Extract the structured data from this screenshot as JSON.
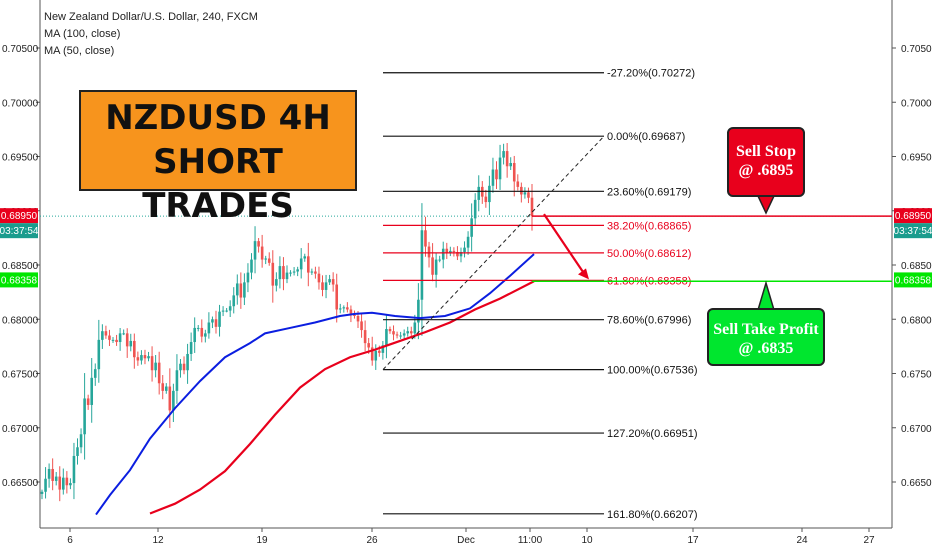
{
  "header": {
    "title": "New Zealand Dollar/U.S. Dollar, 240, FXCM",
    "ma1": "MA (100, close)",
    "ma2": "MA (50, close)"
  },
  "banner": {
    "line1": "NZDUSD 4H",
    "line2": "SHORT TRADES"
  },
  "callouts": {
    "sell_stop": {
      "line1": "Sell Stop",
      "line2": "@ .6895"
    },
    "take_profit": {
      "line1": "Sell Take Profit",
      "line2": "@ .6835"
    }
  },
  "price_badges": {
    "current_price": "0.68950",
    "countdown": "03:37:54",
    "green_price": "0.68358"
  },
  "colors": {
    "up": "#26a69a",
    "down": "#ef5350",
    "ma50": "#0b1ee0",
    "ma100": "#e8001c",
    "stop_line": "#e8001c",
    "tp_line": "#00e600",
    "accent": "#f7941d"
  },
  "chart_data": {
    "type": "candlestick",
    "ylim": [
      0.6625,
      0.7075
    ],
    "y_ticks": [
      "0.70500",
      "0.70000",
      "0.69500",
      "0.69000",
      "0.68500",
      "0.68000",
      "0.67500",
      "0.67000",
      "0.66500"
    ],
    "x_ticks": [
      "6",
      "12",
      "19",
      "26",
      "Dec",
      "11:00",
      "10",
      "17",
      "24",
      "27"
    ],
    "ohlc_open": [
      0.6639,
      0.6641,
      0.6653,
      0.6662,
      0.6651,
      0.6655,
      0.6643,
      0.6654,
      0.6647,
      0.6649,
      0.6674,
      0.6682,
      0.6694,
      0.6727,
      0.6721,
      0.6746,
      0.6754,
      0.6781,
      0.6789,
      0.6785,
      0.6781,
      0.6781,
      0.6779,
      0.6787,
      0.6787,
      0.6775,
      0.678,
      0.6765,
      0.6762,
      0.6767,
      0.6764,
      0.6766,
      0.6753,
      0.676,
      0.6741,
      0.6734,
      0.6738,
      0.6716,
      0.6734,
      0.6753,
      0.6759,
      0.6753,
      0.6768,
      0.6779,
      0.6792,
      0.6792,
      0.6784,
      0.6787,
      0.6797,
      0.68,
      0.6793,
      0.6807,
      0.6808,
      0.6808,
      0.6812,
      0.6822,
      0.6833,
      0.682,
      0.6834,
      0.6843,
      0.6855,
      0.6872,
      0.6867,
      0.6855,
      0.6856,
      0.6852,
      0.6831,
      0.6837,
      0.6849,
      0.6837,
      0.6843,
      0.6843,
      0.6844,
      0.6846,
      0.6856,
      0.6858,
      0.6843,
      0.6844,
      0.6842,
      0.6834,
      0.6827,
      0.6834,
      0.6837,
      0.6832,
      0.6809,
      0.681,
      0.6811,
      0.6809,
      0.6804,
      0.6803,
      0.6798,
      0.679,
      0.6778,
      0.6774,
      0.6762,
      0.6771,
      0.6769,
      0.6776,
      0.6791,
      0.6789,
      0.6786,
      0.6785,
      0.6785,
      0.6787,
      0.6789,
      0.6787,
      0.6797,
      0.6818,
      0.6882,
      0.6867,
      0.6857,
      0.6841,
      0.6855,
      0.6855,
      0.6865,
      0.6861,
      0.6863,
      0.6862,
      0.6858,
      0.6862,
      0.6866,
      0.6876,
      0.6893,
      0.691,
      0.6922,
      0.6913,
      0.6908,
      0.6923,
      0.6938,
      0.6929,
      0.6949,
      0.6955,
      0.6941,
      0.6944,
      0.6927,
      0.6922,
      0.6915,
      0.6917,
      0.6912
    ],
    "ohlc_close": [
      0.6641,
      0.6653,
      0.6662,
      0.6651,
      0.6655,
      0.6643,
      0.6654,
      0.6647,
      0.6649,
      0.6674,
      0.6682,
      0.6694,
      0.6727,
      0.6721,
      0.6746,
      0.6754,
      0.6781,
      0.6789,
      0.6785,
      0.6781,
      0.6781,
      0.6779,
      0.6787,
      0.6787,
      0.6775,
      0.678,
      0.6765,
      0.6762,
      0.6767,
      0.6764,
      0.6766,
      0.6753,
      0.676,
      0.6741,
      0.6734,
      0.6738,
      0.6716,
      0.6734,
      0.6753,
      0.6759,
      0.6753,
      0.6768,
      0.6779,
      0.6792,
      0.6792,
      0.6784,
      0.6787,
      0.6797,
      0.68,
      0.6793,
      0.6807,
      0.6808,
      0.6808,
      0.6812,
      0.6822,
      0.6833,
      0.682,
      0.6834,
      0.6843,
      0.6855,
      0.6872,
      0.6867,
      0.6855,
      0.6856,
      0.6852,
      0.6831,
      0.6837,
      0.6849,
      0.6837,
      0.6843,
      0.6843,
      0.6844,
      0.6846,
      0.6856,
      0.6858,
      0.6843,
      0.6844,
      0.6842,
      0.6834,
      0.6827,
      0.6834,
      0.6837,
      0.6832,
      0.6809,
      0.681,
      0.6811,
      0.6809,
      0.6804,
      0.6803,
      0.6798,
      0.679,
      0.6778,
      0.6774,
      0.6762,
      0.6771,
      0.6769,
      0.6776,
      0.6791,
      0.6789,
      0.6786,
      0.6785,
      0.6785,
      0.6787,
      0.6789,
      0.6787,
      0.6797,
      0.6818,
      0.6882,
      0.6867,
      0.6857,
      0.6841,
      0.6855,
      0.6855,
      0.6865,
      0.6861,
      0.6863,
      0.6862,
      0.6858,
      0.6862,
      0.6866,
      0.6876,
      0.6893,
      0.691,
      0.6922,
      0.6913,
      0.6908,
      0.6923,
      0.6938,
      0.6929,
      0.6949,
      0.6955,
      0.6941,
      0.6944,
      0.6927,
      0.6922,
      0.6915,
      0.6917,
      0.6912,
      0.6895
    ],
    "ma50": [
      [
        96,
        0.662
      ],
      [
        110,
        0.6638
      ],
      [
        130,
        0.6661
      ],
      [
        150,
        0.669
      ],
      [
        175,
        0.6718
      ],
      [
        200,
        0.6743
      ],
      [
        225,
        0.6765
      ],
      [
        250,
        0.6778
      ],
      [
        265,
        0.6787
      ],
      [
        290,
        0.6792
      ],
      [
        315,
        0.6797
      ],
      [
        340,
        0.6803
      ],
      [
        355,
        0.6805
      ],
      [
        372,
        0.6806
      ],
      [
        395,
        0.6803
      ],
      [
        420,
        0.6801
      ],
      [
        445,
        0.6803
      ],
      [
        470,
        0.681
      ],
      [
        490,
        0.6824
      ],
      [
        510,
        0.684
      ],
      [
        534,
        0.686
      ]
    ],
    "ma100": [
      [
        150,
        0.6621
      ],
      [
        175,
        0.663
      ],
      [
        200,
        0.6643
      ],
      [
        225,
        0.666
      ],
      [
        250,
        0.6685
      ],
      [
        275,
        0.6712
      ],
      [
        300,
        0.6737
      ],
      [
        325,
        0.6754
      ],
      [
        350,
        0.6765
      ],
      [
        375,
        0.6772
      ],
      [
        400,
        0.678
      ],
      [
        425,
        0.6788
      ],
      [
        450,
        0.6797
      ],
      [
        475,
        0.6809
      ],
      [
        500,
        0.6819
      ],
      [
        534,
        0.6835
      ]
    ],
    "fib_levels": [
      {
        "label": "-27.20%(0.70272)",
        "price": 0.70272,
        "color": "#111111"
      },
      {
        "label": "0.00%(0.69687)",
        "price": 0.69687,
        "color": "#111111"
      },
      {
        "label": "23.60%(0.69179)",
        "price": 0.69179,
        "color": "#111111"
      },
      {
        "label": "38.20%(0.68865)",
        "price": 0.68865,
        "color": "#e8001c"
      },
      {
        "label": "50.00%(0.68612)",
        "price": 0.68612,
        "color": "#e8001c"
      },
      {
        "label": "61.80%(0.68358)",
        "price": 0.68358,
        "color": "#e8001c"
      },
      {
        "label": "78.60%(0.67996)",
        "price": 0.67996,
        "color": "#111111"
      },
      {
        "label": "100.00%(0.67536)",
        "price": 0.67536,
        "color": "#111111"
      },
      {
        "label": "127.20%(0.66951)",
        "price": 0.66951,
        "color": "#111111"
      },
      {
        "label": "161.80%(0.66207)",
        "price": 0.66207,
        "color": "#111111"
      }
    ],
    "sell_stop_price": 0.6895,
    "take_profit_price": 0.6835
  }
}
